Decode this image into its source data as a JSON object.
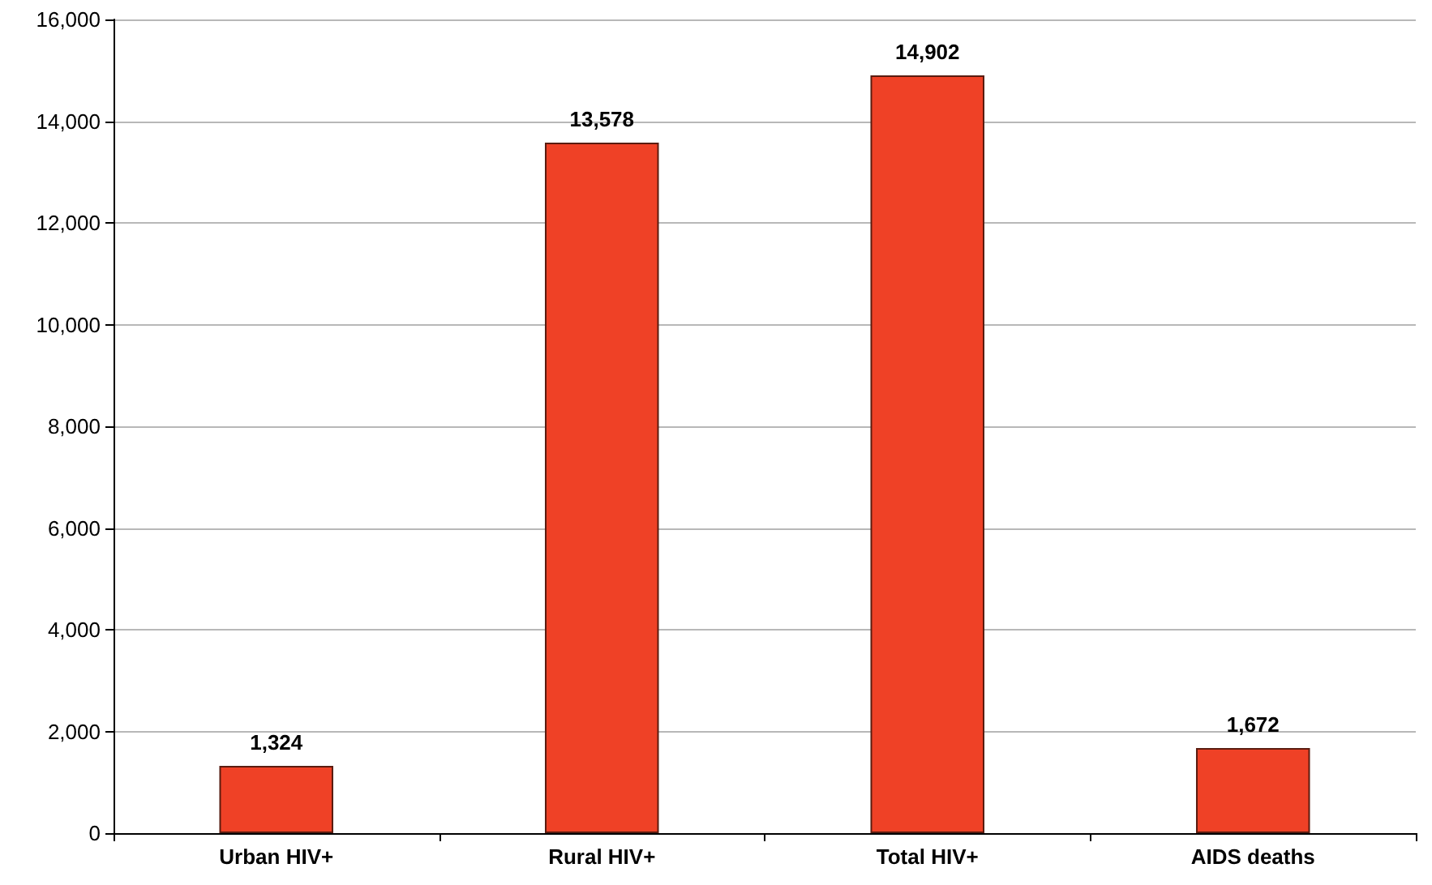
{
  "chart_data": {
    "type": "bar",
    "categories": [
      "Urban HIV+",
      "Rural HIV+",
      "Total HIV+",
      "AIDS deaths"
    ],
    "values": [
      1324,
      13578,
      14902,
      1672
    ],
    "value_labels": [
      "1,324",
      "13,578",
      "14,902",
      "1,672"
    ],
    "color": "#ef4126",
    "ylim": [
      0,
      16000
    ],
    "yticks": [
      0,
      {
        "value": 2000,
        "label": "2,000"
      },
      {
        "value": 4000,
        "label": "4,000"
      },
      {
        "value": 6000,
        "label": "6,000"
      },
      {
        "value": 8000,
        "label": "8,000"
      },
      {
        "value": 10000,
        "label": "10,000"
      },
      {
        "value": 12000,
        "label": "12,000"
      },
      {
        "value": 14000,
        "label": "14,000"
      },
      {
        "value": 16000,
        "label": "16,000"
      }
    ],
    "grid": "y"
  }
}
